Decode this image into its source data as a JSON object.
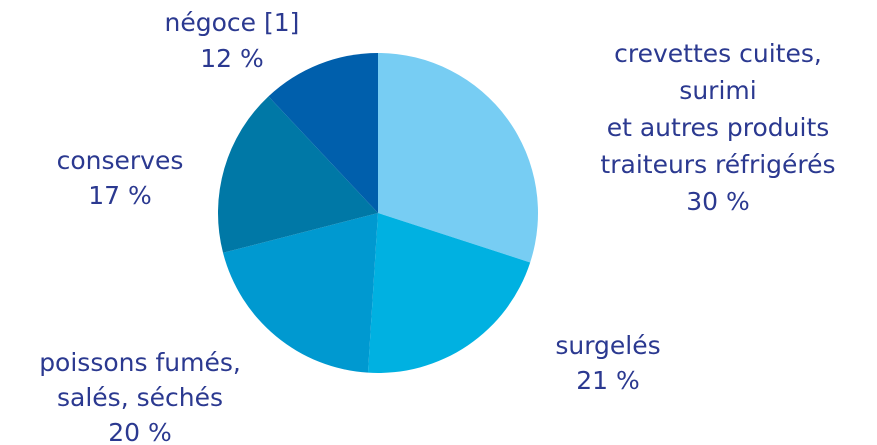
{
  "chart_data": {
    "type": "pie",
    "categories": [
      [
        "crevettes cuites,",
        "surimi",
        "et autres produits",
        "traiteurs réfrigérés"
      ],
      [
        "surgelés"
      ],
      [
        "poissons fumés,",
        "salés, séchés"
      ],
      [
        "conserves"
      ],
      [
        "négoce [1]"
      ]
    ],
    "values": [
      30,
      21,
      20,
      17,
      12
    ],
    "value_labels": [
      "30 %",
      "21 %",
      "20 %",
      "17 %",
      "12 %"
    ],
    "colors": [
      "#77cdf3",
      "#00b1e1",
      "#0099d0",
      "#0078a6",
      "#005fac"
    ]
  }
}
